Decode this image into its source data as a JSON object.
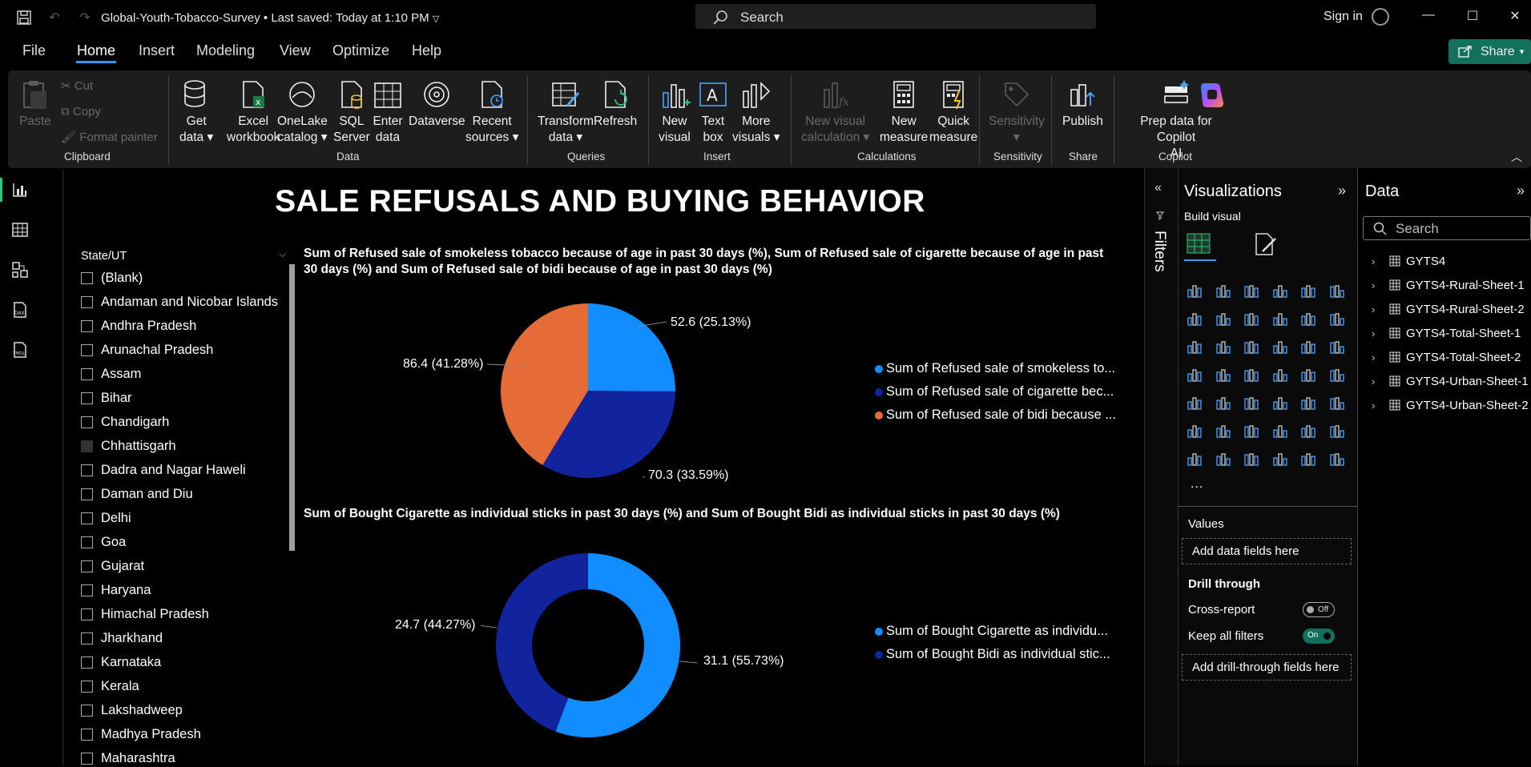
{
  "app": {
    "file_title": "Global-Youth-Tobacco-Survey",
    "saved_status": "Last saved: Today at 1:10 PM",
    "search_placeholder": "Search",
    "sign_in": "Sign in",
    "share": "Share"
  },
  "menu": [
    "File",
    "Home",
    "Insert",
    "Modeling",
    "View",
    "Optimize",
    "Help"
  ],
  "ribbon": {
    "clipboard": {
      "paste": "Paste",
      "cut": "Cut",
      "copy": "Copy",
      "format_painter": "Format painter",
      "group": "Clipboard"
    },
    "data": {
      "get_data": "Get\ndata",
      "excel": "Excel\nworkbook",
      "onelake": "OneLake\ncatalog",
      "sql": "SQL\nServer",
      "enter": "Enter\ndata",
      "dataverse": "Dataverse",
      "recent": "Recent\nsources",
      "group": "Data"
    },
    "queries": {
      "transform": "Transform\ndata",
      "refresh": "Refresh",
      "group": "Queries"
    },
    "insert": {
      "new_visual": "New\nvisual",
      "text_box": "Text\nbox",
      "more_visuals": "More\nvisuals",
      "group": "Insert"
    },
    "calculations": {
      "new_visual_calc": "New visual\ncalculation",
      "new_measure": "New\nmeasure",
      "quick_measure": "Quick\nmeasure",
      "group": "Calculations"
    },
    "sensitivity": {
      "label": "Sensitivity",
      "group": "Sensitivity"
    },
    "share": {
      "publish": "Publish",
      "group": "Share"
    },
    "copilot": {
      "prep": "Prep data for Copilot\nAI",
      "group": "Copilot"
    }
  },
  "report": {
    "title": "SALE REFUSALS AND BUYING BEHAVIOR",
    "slicer": {
      "title": "State/UT",
      "items": [
        "(Blank)",
        "Andaman and Nicobar Islands",
        "Andhra Pradesh",
        "Arunachal Pradesh",
        "Assam",
        "Bihar",
        "Chandigarh",
        "Chhattisgarh",
        "Dadra and Nagar Haweli",
        "Daman and Diu",
        "Delhi",
        "Goa",
        "Gujarat",
        "Haryana",
        "Himachal Pradesh",
        "Jharkhand",
        "Karnataka",
        "Kerala",
        "Lakshadweep",
        "Madhya Pradesh",
        "Maharashtra"
      ]
    }
  },
  "chart_data": [
    {
      "type": "pie",
      "title": "Sum of Refused sale of smokeless tobacco because of age in past 30 days (%), Sum of Refused sale of cigarette because of age in past 30 days (%) and Sum of Refused sale of bidi because of age in past 30 days (%)",
      "categories": [
        "Sum of Refused sale of smokeless to...",
        "Sum of Refused sale of cigarette bec...",
        "Sum of Refused sale of bidi because ..."
      ],
      "values": [
        52.6,
        70.3,
        86.4
      ],
      "percent_labels": [
        "25.13%",
        "33.59%",
        "41.28%"
      ],
      "data_labels": [
        "52.6 (25.13%)",
        "70.3 (33.59%)",
        "86.4 (41.28%)"
      ],
      "colors": [
        "#118DFF",
        "#12239E",
        "#E66C37"
      ],
      "legend_position": "right"
    },
    {
      "type": "donut",
      "title": "Sum of Bought Cigarette as individual sticks in past 30 days (%) and Sum of Bought Bidi as individual sticks in past 30 days (%)",
      "categories": [
        "Sum of Bought Cigarette as individu...",
        "Sum of Bought Bidi as individual stic..."
      ],
      "values": [
        31.1,
        24.7
      ],
      "percent_labels": [
        "55.73%",
        "44.27%"
      ],
      "data_labels": [
        "31.1 (55.73%)",
        "24.7 (44.27%)"
      ],
      "colors": [
        "#118DFF",
        "#12239E"
      ],
      "legend_position": "right"
    }
  ],
  "filters_label": "Filters",
  "visualizations": {
    "title": "Visualizations",
    "build_visual": "Build visual",
    "values_label": "Values",
    "add_data_fields": "Add data fields here",
    "drill_through": "Drill through",
    "cross_report": "Cross-report",
    "cross_report_state": "Off",
    "keep_all_filters": "Keep all filters",
    "keep_all_filters_state": "On",
    "add_drill_fields": "Add drill-through fields here",
    "more": "..."
  },
  "data_pane": {
    "title": "Data",
    "search_placeholder": "Search",
    "tables": [
      "GYTS4",
      "GYTS4-Rural-Sheet-1",
      "GYTS4-Rural-Sheet-2",
      "GYTS4-Total-Sheet-1",
      "GYTS4-Total-Sheet-2",
      "GYTS4-Urban-Sheet-1",
      "GYTS4-Urban-Sheet-2"
    ]
  }
}
